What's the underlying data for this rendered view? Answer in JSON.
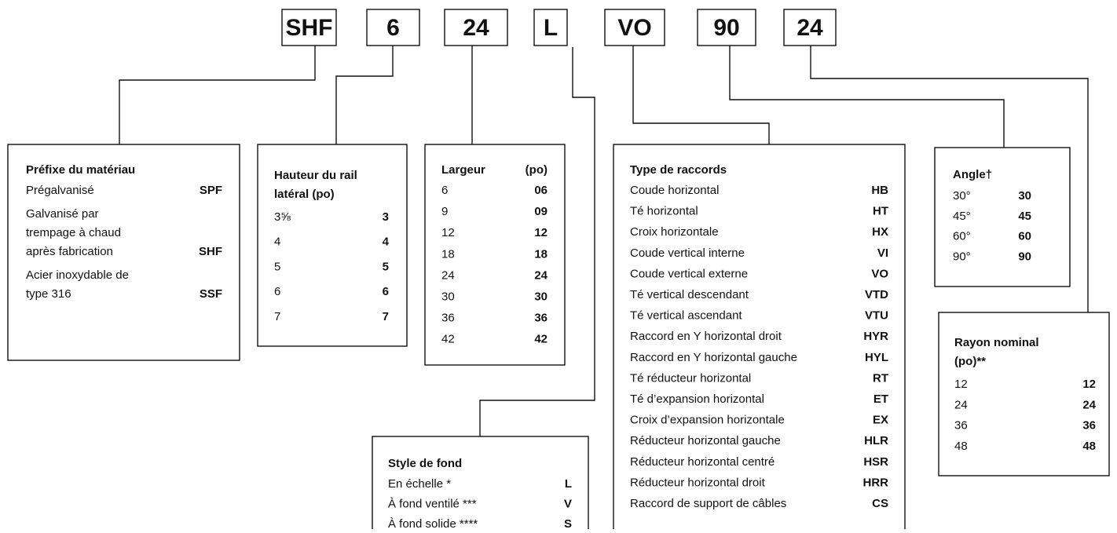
{
  "codes": [
    "SHF",
    "6",
    "24",
    "L",
    "VO",
    "90",
    "24"
  ],
  "sections": [
    {
      "title": [
        "Préfixe du matériau"
      ],
      "rows": [
        {
          "label": [
            "Prégalvanisé"
          ],
          "code": "SPF"
        },
        {
          "label": [
            "Galvanisé par",
            "trempage à chaud",
            "après fabrication"
          ],
          "code": "SHF"
        },
        {
          "label": [
            "Acier inoxydable de",
            "type 316"
          ],
          "code": "SSF"
        }
      ]
    },
    {
      "title": [
        "Hauteur du rail",
        "latéral (po)"
      ],
      "rows": [
        {
          "label": [
            "3⅝"
          ],
          "code": "3"
        },
        {
          "label": [
            "4"
          ],
          "code": "4"
        },
        {
          "label": [
            "5"
          ],
          "code": "5"
        },
        {
          "label": [
            "6"
          ],
          "code": "6"
        },
        {
          "label": [
            "7"
          ],
          "code": "7"
        }
      ]
    },
    {
      "title": [
        "Largeur"
      ],
      "header_right": "(po)",
      "rows": [
        {
          "label": [
            "6"
          ],
          "code": "06"
        },
        {
          "label": [
            "9"
          ],
          "code": "09"
        },
        {
          "label": [
            "12"
          ],
          "code": "12"
        },
        {
          "label": [
            "18"
          ],
          "code": "18"
        },
        {
          "label": [
            "24"
          ],
          "code": "24"
        },
        {
          "label": [
            "30"
          ],
          "code": "30"
        },
        {
          "label": [
            "36"
          ],
          "code": "36"
        },
        {
          "label": [
            "42"
          ],
          "code": "42"
        }
      ]
    },
    {
      "title": [
        "Style de fond"
      ],
      "rows": [
        {
          "label": [
            "En échelle *"
          ],
          "code": "L"
        },
        {
          "label": [
            "À fond ventilé ***"
          ],
          "code": "V"
        },
        {
          "label": [
            "À fond solide ****"
          ],
          "code": "S"
        }
      ]
    },
    {
      "title": [
        "Type de raccords"
      ],
      "rows": [
        {
          "label": [
            "Coude horizontal"
          ],
          "code": "HB"
        },
        {
          "label": [
            "Té horizontal"
          ],
          "code": "HT"
        },
        {
          "label": [
            "Croix horizontale"
          ],
          "code": "HX"
        },
        {
          "label": [
            "Coude vertical interne"
          ],
          "code": "VI"
        },
        {
          "label": [
            "Coude vertical externe"
          ],
          "code": "VO"
        },
        {
          "label": [
            "Té vertical descendant"
          ],
          "code": "VTD"
        },
        {
          "label": [
            "Té vertical ascendant"
          ],
          "code": "VTU"
        },
        {
          "label": [
            "Raccord en Y horizontal droit"
          ],
          "code": "HYR"
        },
        {
          "label": [
            "Raccord en Y horizontal gauche"
          ],
          "code": "HYL"
        },
        {
          "label": [
            "Té réducteur horizontal"
          ],
          "code": "RT"
        },
        {
          "label": [
            "Té d’expansion horizontal"
          ],
          "code": "ET"
        },
        {
          "label": [
            "Croix d’expansion horizontale"
          ],
          "code": "EX"
        },
        {
          "label": [
            "Réducteur horizontal gauche"
          ],
          "code": "HLR"
        },
        {
          "label": [
            "Réducteur horizontal centré"
          ],
          "code": "HSR"
        },
        {
          "label": [
            "Réducteur horizontal droit"
          ],
          "code": "HRR"
        },
        {
          "label": [
            "Raccord de support de câbles"
          ],
          "code": "CS"
        }
      ]
    },
    {
      "title": [
        "Angle†"
      ],
      "rows": [
        {
          "label": [
            "30°"
          ],
          "code": "30"
        },
        {
          "label": [
            "45°"
          ],
          "code": "45"
        },
        {
          "label": [
            "60°"
          ],
          "code": "60"
        },
        {
          "label": [
            "90°"
          ],
          "code": "90"
        }
      ]
    },
    {
      "title": [
        "Rayon nominal",
        "(po)**"
      ],
      "rows": [
        {
          "label": [
            "12"
          ],
          "code": "12"
        },
        {
          "label": [
            "24"
          ],
          "code": "24"
        },
        {
          "label": [
            "36"
          ],
          "code": "36"
        },
        {
          "label": [
            "48"
          ],
          "code": "48"
        }
      ]
    }
  ]
}
